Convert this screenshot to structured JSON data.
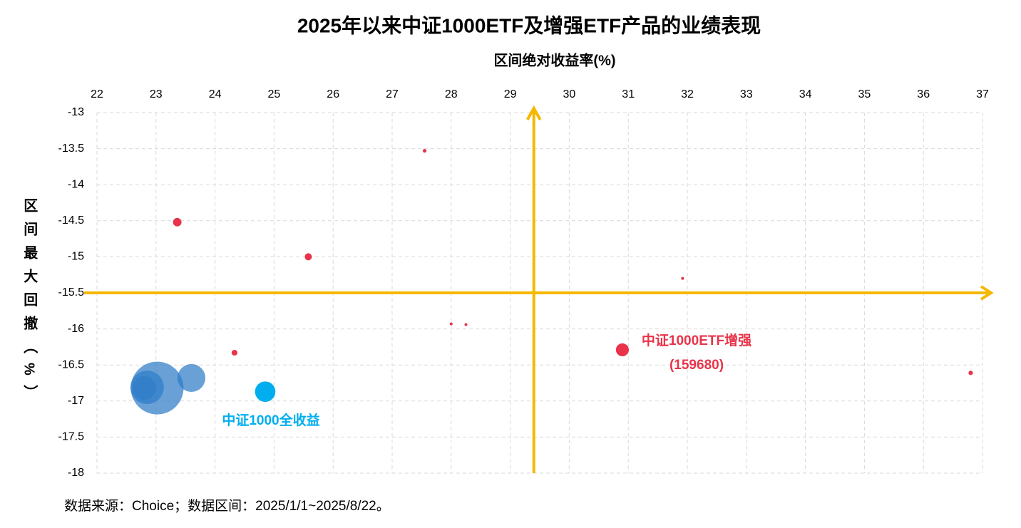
{
  "chart_data": {
    "type": "bubble",
    "title": "2025年以来中证1000ETF及增强ETF产品的业绩表现",
    "x_label": "区间绝对收益率(%)",
    "y_label": "区间最大回撤（%）",
    "xlim": [
      22,
      37
    ],
    "xticks": [
      22,
      23,
      24,
      25,
      26,
      27,
      28,
      29,
      30,
      31,
      32,
      33,
      34,
      35,
      36,
      37
    ],
    "ylim": [
      -18,
      -13
    ],
    "yticks": [
      -13,
      -13.5,
      -14,
      -14.5,
      -15,
      -15.5,
      -16,
      -16.5,
      -17,
      -17.5,
      -18
    ],
    "grid": true,
    "reference_lines": {
      "x": 29.4,
      "y": -15.5,
      "color": "#f5b800"
    },
    "series": [
      {
        "color": "#e8334a",
        "opacity": 1,
        "x": [
          27.55,
          23.36,
          25.58,
          31.92,
          28.0,
          28.25,
          24.33,
          30.9,
          36.8
        ],
        "y": [
          -13.53,
          -14.52,
          -15.0,
          -15.3,
          -15.93,
          -15.94,
          -16.33,
          -16.29,
          -16.61
        ],
        "size": [
          0.5,
          2.6,
          1.8,
          0.3,
          0.3,
          0.3,
          1.2,
          6,
          0.7
        ]
      },
      {
        "color": "#2f7dc8",
        "opacity": 0.72,
        "x": [
          23.02,
          23.6,
          22.85,
          22.8
        ],
        "y": [
          -16.82,
          -16.68,
          -16.81,
          -16.82
        ],
        "size": [
          100,
          28,
          40,
          20
        ]
      },
      {
        "color": "#00aeef",
        "opacity": 1,
        "x": [
          24.85
        ],
        "y": [
          -16.87
        ],
        "size": [
          15
        ]
      }
    ],
    "annotations": [
      {
        "text": "中证1000ETF增强",
        "color": "#e8334a"
      },
      {
        "text": "(159680)",
        "color": "#e8334a"
      },
      {
        "text": "中证1000全收益",
        "color": "#00aeef"
      }
    ],
    "source": "数据来源：Choice；数据区间：2025/1/1~2025/8/22。"
  }
}
